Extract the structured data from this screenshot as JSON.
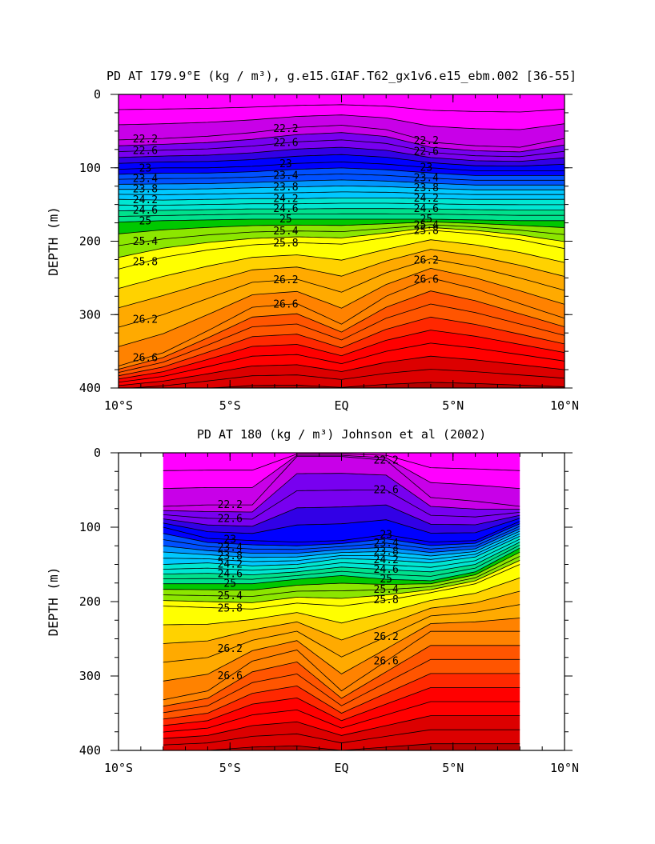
{
  "chart_data": [
    {
      "type": "heatmap",
      "subtype": "filled-contour depth-latitude section",
      "title": "PD AT 179.9°E (kg / m³), g.e15.GIAF.T62_gx1v6.e15_ebm.002 [36-55]",
      "ylabel": "DEPTH (m)",
      "xlabel": "",
      "x_ticks": [
        "10°S",
        "5°S",
        "EQ",
        "5°N",
        "10°N"
      ],
      "y_ticks": [
        "0",
        "100",
        "200",
        "300",
        "400"
      ],
      "xlim": [
        -10,
        10
      ],
      "ylim": [
        400,
        0
      ],
      "contour_levels": [
        21.4,
        21.8,
        22.2,
        22.6,
        23.0,
        23.4,
        23.8,
        24.2,
        24.6,
        25.0,
        25.4,
        25.8,
        26.2,
        26.6,
        27.0
      ],
      "contour_labels": [
        "22.2",
        "22.6",
        "23",
        "23.4",
        "23.8",
        "24.2",
        "24.6",
        "25",
        "25.4",
        "25.8",
        "26.2",
        "26.6"
      ],
      "isopycnal_depths_m": {
        "latitude": [
          -10,
          -8,
          -6,
          -4,
          -2,
          0,
          2,
          4,
          6,
          8,
          10
        ],
        "22.2": [
          62,
          60,
          57,
          52,
          45,
          42,
          48,
          65,
          70,
          72,
          60
        ],
        "23.0": [
          102,
          100,
          100,
          98,
          94,
          92,
          95,
          100,
          104,
          104,
          104
        ],
        "24.2": [
          143,
          144,
          143,
          142,
          142,
          141,
          141,
          142,
          143,
          143,
          143
        ],
        "25.0": [
          174,
          172,
          171,
          170,
          170,
          170,
          170,
          170,
          171,
          172,
          172
        ],
        "25.8": [
          238,
          222,
          212,
          205,
          202,
          204,
          195,
          185,
          190,
          198,
          210
        ],
        "26.6": [
          370,
          352,
          322,
          290,
          285,
          313,
          275,
          250,
          265,
          285,
          305
        ]
      }
    },
    {
      "type": "heatmap",
      "subtype": "filled-contour depth-latitude section",
      "title": "PD AT 180 (kg / m³) Johnson et al (2002)",
      "ylabel": "DEPTH (m)",
      "xlabel": "",
      "x_ticks": [
        "10°S",
        "5°S",
        "EQ",
        "5°N",
        "10°N"
      ],
      "y_ticks": [
        "0",
        "100",
        "200",
        "300",
        "400"
      ],
      "xlim": [
        -10,
        10
      ],
      "ylim": [
        400,
        0
      ],
      "data_extent_lat": [
        -8,
        8
      ],
      "contour_levels": [
        21.4,
        21.8,
        22.2,
        22.6,
        23.0,
        23.4,
        23.8,
        24.2,
        24.6,
        25.0,
        25.4,
        25.8,
        26.2,
        26.6,
        27.0
      ],
      "contour_labels": [
        "22.2",
        "22.6",
        "23",
        "23.4",
        "23.8",
        "24.2",
        "24.6",
        "25",
        "25.4",
        "25.8",
        "26.2",
        "26.6"
      ],
      "isopycnal_depths_m": {
        "latitude": [
          -8,
          -6,
          -4,
          -2,
          0,
          2,
          4,
          6,
          8
        ],
        "22.2": [
          72,
          70,
          70,
          5,
          5,
          10,
          60,
          65,
          72
        ],
        "23.0": [
          100,
          115,
          118,
          120,
          118,
          110,
          120,
          118,
          92
        ],
        "24.2": [
          150,
          148,
          152,
          150,
          142,
          144,
          148,
          140,
          112
        ],
        "25.0": [
          176,
          176,
          176,
          170,
          165,
          170,
          172,
          160,
          128
        ],
        "25.8": [
          206,
          208,
          210,
          202,
          206,
          198,
          188,
          176,
          150
        ],
        "26.6": [
          332,
          320,
          280,
          265,
          320,
          280,
          240,
          240,
          240
        ]
      }
    }
  ]
}
